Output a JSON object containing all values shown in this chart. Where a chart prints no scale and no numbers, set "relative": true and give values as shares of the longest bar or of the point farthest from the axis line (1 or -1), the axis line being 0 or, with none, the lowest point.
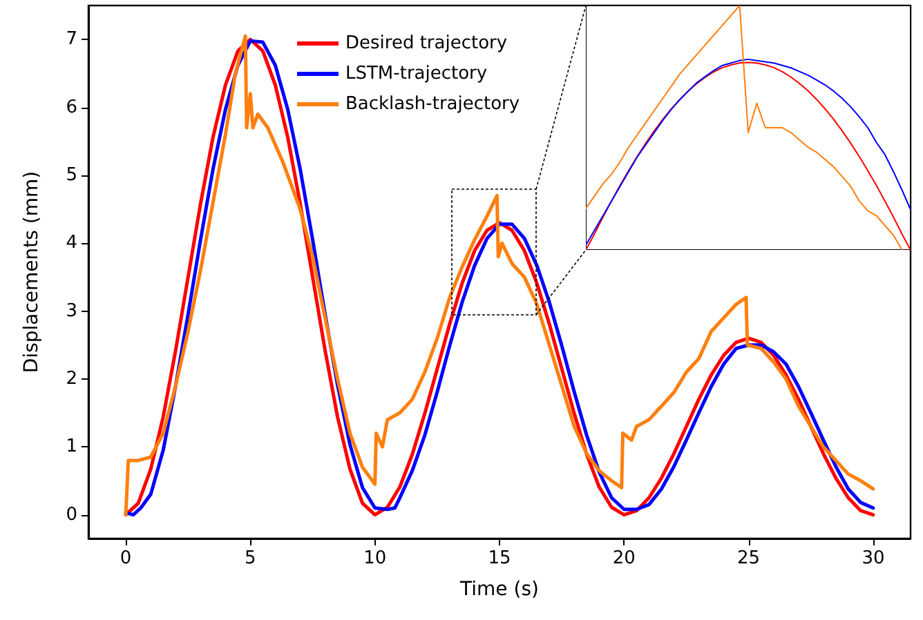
{
  "chart_data": [
    {
      "type": "line",
      "xlabel": "Time (s)",
      "ylabel": "Displacements (mm)",
      "xlim": [
        -1.5,
        31.5
      ],
      "ylim": [
        -0.35,
        7.5
      ],
      "xticks": [
        0,
        5,
        10,
        15,
        20,
        25,
        30
      ],
      "yticks": [
        0,
        1,
        2,
        3,
        4,
        5,
        6,
        7
      ],
      "legend": "top",
      "grid": false,
      "marker": "none",
      "line_style": "solid",
      "series": [
        {
          "name": "Desired trajectory",
          "color": "#ff0000",
          "x": [
            0,
            0.5,
            1,
            1.5,
            2,
            2.5,
            3,
            3.5,
            4,
            4.5,
            5,
            5.5,
            6,
            6.5,
            7,
            7.5,
            8,
            8.5,
            9,
            9.5,
            10,
            10.5,
            11,
            11.5,
            12,
            12.5,
            13,
            13.5,
            14,
            14.5,
            15,
            15.5,
            16,
            16.5,
            17,
            17.5,
            18,
            18.5,
            19,
            19.5,
            20,
            20.5,
            21,
            21.5,
            22,
            22.5,
            23,
            23.5,
            24,
            24.5,
            25,
            25.5,
            26,
            26.5,
            27,
            27.5,
            28,
            28.5,
            29,
            29.5,
            30
          ],
          "values": [
            0,
            0.17,
            0.67,
            1.44,
            2.42,
            3.5,
            4.58,
            5.56,
            6.33,
            6.83,
            7,
            6.83,
            6.33,
            5.56,
            4.58,
            3.5,
            2.42,
            1.44,
            0.67,
            0.17,
            0,
            0.11,
            0.41,
            0.89,
            1.49,
            2.15,
            2.81,
            3.41,
            3.89,
            4.19,
            4.3,
            4.19,
            3.89,
            3.41,
            2.81,
            2.15,
            1.49,
            0.89,
            0.41,
            0.11,
            0,
            0.06,
            0.25,
            0.54,
            0.9,
            1.3,
            1.7,
            2.06,
            2.35,
            2.54,
            2.6,
            2.54,
            2.35,
            2.06,
            1.7,
            1.3,
            0.9,
            0.54,
            0.25,
            0.06,
            0
          ]
        },
        {
          "name": "LSTM-trajectory",
          "color": "#0000ff",
          "x": [
            0,
            0.3,
            0.6,
            1,
            1.5,
            2,
            2.5,
            3,
            3.5,
            4,
            4.5,
            5,
            5.5,
            6,
            6.5,
            7,
            7.5,
            8,
            8.5,
            9,
            9.5,
            10,
            10.5,
            10.8,
            11,
            11.5,
            12,
            12.5,
            13,
            13.5,
            14,
            14.5,
            15,
            15.5,
            16,
            16.5,
            17,
            17.5,
            18,
            18.5,
            19,
            19.5,
            20,
            20.5,
            21,
            21.5,
            22,
            22.5,
            23,
            23.5,
            24,
            24.5,
            25,
            25.5,
            26,
            26.5,
            27,
            27.5,
            28,
            28.5,
            29,
            29.5,
            30
          ],
          "values": [
            0.03,
            0,
            0.1,
            0.3,
            0.95,
            1.9,
            2.95,
            4.05,
            5.09,
            5.97,
            6.62,
            6.98,
            6.96,
            6.62,
            5.97,
            5.09,
            4.05,
            2.95,
            1.91,
            1.03,
            0.4,
            0.1,
            0.08,
            0.1,
            0.25,
            0.65,
            1.17,
            1.81,
            2.49,
            3.13,
            3.67,
            4.07,
            4.28,
            4.28,
            4.07,
            3.67,
            3.13,
            2.49,
            1.81,
            1.17,
            0.63,
            0.25,
            0.08,
            0.08,
            0.15,
            0.38,
            0.71,
            1.1,
            1.5,
            1.89,
            2.22,
            2.45,
            2.5,
            2.5,
            2.4,
            2.22,
            1.89,
            1.5,
            1.1,
            0.71,
            0.38,
            0.18,
            0.1
          ]
        },
        {
          "name": "Backlash-trajectory",
          "color": "#ff7f0e",
          "x": [
            0,
            0.1,
            0.5,
            1,
            1.5,
            2,
            2.5,
            3,
            3.5,
            4,
            4.4,
            4.8,
            4.85,
            5,
            5.1,
            5.3,
            5.7,
            6.3,
            7,
            7.5,
            8,
            8.5,
            9,
            9.5,
            10,
            10.05,
            10.3,
            10.5,
            11,
            11.5,
            12,
            12.5,
            13,
            13.5,
            14,
            14.5,
            14.9,
            14.95,
            15.1,
            15.5,
            16,
            16.5,
            17,
            17.5,
            18,
            18.5,
            19,
            19.5,
            19.9,
            19.95,
            20.3,
            20.5,
            21,
            21.5,
            22,
            22.5,
            23,
            23.5,
            24,
            24.5,
            24.9,
            24.95,
            25.5,
            26,
            26.5,
            27,
            27.5,
            28,
            28.5,
            29,
            29.5,
            30
          ],
          "values": [
            0,
            0.8,
            0.8,
            0.85,
            1.2,
            1.9,
            2.7,
            3.6,
            4.6,
            5.6,
            6.5,
            7.05,
            5.7,
            6.2,
            5.7,
            5.9,
            5.7,
            5.2,
            4.5,
            3.8,
            2.9,
            2,
            1.2,
            0.7,
            0.45,
            1.2,
            1,
            1.4,
            1.5,
            1.7,
            2.1,
            2.6,
            3.2,
            3.65,
            4.05,
            4.4,
            4.7,
            3.8,
            4,
            3.7,
            3.5,
            3.1,
            2.5,
            1.9,
            1.3,
            0.9,
            0.65,
            0.5,
            0.4,
            1.2,
            1.1,
            1.3,
            1.4,
            1.6,
            1.8,
            2.1,
            2.3,
            2.7,
            2.9,
            3.1,
            3.2,
            2.5,
            2.45,
            2.25,
            2,
            1.6,
            1.3,
            1,
            0.8,
            0.6,
            0.5,
            0.38
          ]
        }
      ]
    },
    {
      "type": "line",
      "relative": true,
      "categories": [
        null,
        null,
        null,
        null,
        null,
        null,
        null,
        null,
        null,
        null,
        null,
        null,
        null,
        null,
        null,
        null,
        null,
        null,
        null,
        null,
        null,
        null,
        null,
        null,
        null,
        null,
        null,
        null,
        null,
        null,
        null,
        null,
        null,
        null,
        null,
        null,
        null,
        null,
        null
      ],
      "tick_labels": false,
      "grid": false,
      "marker": "none",
      "line_style": "solid",
      "series": [
        {
          "color": "#ff0000",
          "values": [
            0,
            0.065,
            0.134,
            0.2,
            0.264,
            0.324,
            0.382,
            0.436,
            0.487,
            0.534,
            0.577,
            0.616,
            0.651,
            0.681,
            0.707,
            0.729,
            0.746,
            0.757,
            0.765,
            0.767,
            0.765,
            0.757,
            0.746,
            0.729,
            0.707,
            0.681,
            0.651,
            0.616,
            0.577,
            0.534,
            0.487,
            0.436,
            0.382,
            0.324,
            0.264,
            0.2,
            0.134,
            0.065,
            0
          ]
        },
        {
          "color": "#0000ff",
          "values": [
            0.02,
            0.08,
            0.14,
            0.2,
            0.26,
            0.32,
            0.38,
            0.43,
            0.48,
            0.53,
            0.575,
            0.615,
            0.65,
            0.685,
            0.71,
            0.735,
            0.755,
            0.765,
            0.775,
            0.78,
            0.775,
            0.77,
            0.765,
            0.755,
            0.745,
            0.73,
            0.715,
            0.695,
            0.675,
            0.65,
            0.62,
            0.585,
            0.545,
            0.5,
            0.44,
            0.39,
            0.32,
            0.245,
            0.165
          ]
        },
        {
          "color": "#ff7f0e",
          "values": [
            0.17,
            0.22,
            0.27,
            0.31,
            0.36,
            0.42,
            0.47,
            0.52,
            0.57,
            0.62,
            0.67,
            0.72,
            0.76,
            0.8,
            0.84,
            0.88,
            0.92,
            0.96,
            1,
            0.48,
            0.6,
            0.5,
            0.5,
            0.5,
            0.48,
            0.45,
            0.42,
            0.4,
            0.37,
            0.34,
            0.3,
            0.26,
            0.2,
            0.16,
            0.14,
            0.1,
            0.06,
            0,
            null
          ]
        }
      ]
    }
  ]
}
